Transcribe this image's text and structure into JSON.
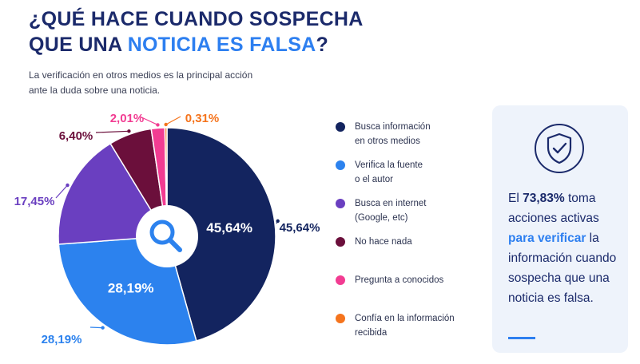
{
  "title": {
    "line1": "¿QUÉ HACE CUANDO SOSPECHA",
    "line2_pre": "QUE UNA ",
    "line2_highlight": "NOTICIA ES FALSA",
    "line2_post": "?"
  },
  "subtitle": {
    "line1": "La verificación en otros medios es la principal acción",
    "line2": "ante la duda sobre una noticia."
  },
  "chart_data": {
    "type": "pie",
    "title": "",
    "center_icon": "search-icon",
    "slices": [
      {
        "label_line1": "Busca información",
        "label_line2": "en otros medios",
        "value": 45.64,
        "value_label": "45,64%",
        "color": "#13245f"
      },
      {
        "label_line1": "Verifica la fuente",
        "label_line2": "o el autor",
        "value": 28.19,
        "value_label": "28,19%",
        "color": "#2c82ee"
      },
      {
        "label_line1": "Busca en internet",
        "label_line2": "(Google, etc)",
        "value": 17.45,
        "value_label": "17,45%",
        "color": "#6a3fc0"
      },
      {
        "label_line1": "No hace nada",
        "label_line2": "",
        "value": 6.4,
        "value_label": "6,40%",
        "color": "#6b0f3b"
      },
      {
        "label_line1": "Pregunta a conocidos",
        "label_line2": "",
        "value": 2.01,
        "value_label": "2,01%",
        "color": "#f23c92"
      },
      {
        "label_line1": "Confía en la información",
        "label_line2": "recibida",
        "value": 0.31,
        "value_label": "0,31%",
        "color": "#f5741d"
      }
    ]
  },
  "card": {
    "icon": "shield-check-icon",
    "text_pre": "El ",
    "text_strong": "73,83%",
    "text_after_strong": " toma acciones activas ",
    "text_highlight": "para verificar",
    "text_post": " la información cuando sospecha que una noticia es falsa."
  }
}
